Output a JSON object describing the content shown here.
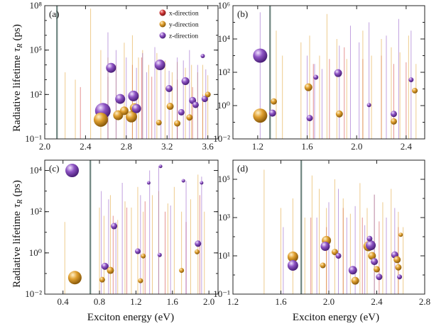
{
  "figure": {
    "ylabel": "Radiative lifetime",
    "ylabel_symbol": "τ",
    "ylabel_sub": "R",
    "ylabel_unit": "(ps)",
    "xlabel": "Exciton energy (eV)",
    "legend": [
      "x-direction",
      "y-direction",
      "z-direction"
    ]
  },
  "colors": {
    "x": "#d23a3a",
    "y": "#e0a030",
    "z": "#8e54c4",
    "vline": "#6f8580"
  },
  "chart_data": [
    {
      "panel": "(a)",
      "type": "scatter",
      "xlim": [
        2.0,
        3.7
      ],
      "ylog": true,
      "ylim_exp": [
        -1,
        8
      ],
      "xticks": [
        "2.0",
        "2.4",
        "2.8",
        "3.2",
        "3.6"
      ],
      "xtick_values": [
        2.0,
        2.4,
        2.8,
        3.2,
        3.6
      ],
      "yticks": [
        "10⁻¹",
        "10²",
        "10⁵",
        "10⁸"
      ],
      "ytick_exp": [
        -1,
        2,
        5,
        8
      ],
      "vline": 2.12,
      "legend_position": "top-right",
      "sticks": {
        "x": [
          [
            2.35,
            2.5
          ],
          [
            2.62,
            3.2
          ],
          [
            2.86,
            4.0
          ],
          [
            2.95,
            4.5
          ],
          [
            3.05,
            3.2
          ],
          [
            3.3,
            3.0
          ],
          [
            3.45,
            2.5
          ],
          [
            3.55,
            2.0
          ]
        ],
        "y": [
          [
            2.2,
            3.5
          ],
          [
            2.3,
            3.0
          ],
          [
            2.45,
            7.8
          ],
          [
            2.55,
            5.0
          ],
          [
            2.62,
            4.5
          ],
          [
            2.7,
            4.0
          ],
          [
            2.78,
            5.5
          ],
          [
            2.86,
            6.0
          ],
          [
            2.92,
            4.5
          ],
          [
            2.96,
            5.0
          ],
          [
            3.02,
            4.0
          ],
          [
            3.1,
            4.8
          ],
          [
            3.18,
            4.3
          ],
          [
            3.25,
            3.5
          ],
          [
            3.3,
            4.2
          ],
          [
            3.38,
            3.8
          ],
          [
            3.44,
            4.0
          ],
          [
            3.5,
            3.5
          ],
          [
            3.55,
            4.0
          ],
          [
            3.6,
            3.3
          ]
        ],
        "z": [
          [
            2.62,
            6.2
          ],
          [
            2.7,
            5.0
          ],
          [
            2.8,
            4.5
          ],
          [
            2.9,
            3.8
          ],
          [
            2.96,
            4.8
          ],
          [
            3.0,
            3.5
          ],
          [
            3.08,
            5.2
          ],
          [
            3.14,
            4.0
          ],
          [
            3.22,
            3.6
          ],
          [
            3.3,
            4.5
          ],
          [
            3.36,
            4.3
          ],
          [
            3.42,
            5.0
          ],
          [
            3.5,
            4.0
          ],
          [
            3.58,
            3.7
          ]
        ]
      },
      "bubbles": [
        {
          "pol": "y",
          "x": 2.55,
          "y": 0.3,
          "s": 20
        },
        {
          "pol": "z",
          "x": 2.57,
          "y": 0.9,
          "s": 22
        },
        {
          "pol": "z",
          "x": 2.65,
          "y": 3.8,
          "s": 14
        },
        {
          "pol": "y",
          "x": 2.72,
          "y": 0.6,
          "s": 14
        },
        {
          "pol": "z",
          "x": 2.74,
          "y": 1.7,
          "s": 14
        },
        {
          "pol": "y",
          "x": 2.78,
          "y": 0.9,
          "s": 12
        },
        {
          "pol": "y",
          "x": 2.85,
          "y": 0.5,
          "s": 16
        },
        {
          "pol": "y",
          "x": 2.88,
          "y": 1.1,
          "s": 13
        },
        {
          "pol": "z",
          "x": 2.87,
          "y": 1.9,
          "s": 15
        },
        {
          "pol": "z",
          "x": 2.9,
          "y": 1.05,
          "s": 13
        },
        {
          "pol": "y",
          "x": 3.12,
          "y": 0.1,
          "s": 8
        },
        {
          "pol": "z",
          "x": 3.13,
          "y": 4.0,
          "s": 15
        },
        {
          "pol": "z",
          "x": 3.22,
          "y": 2.4,
          "s": 10
        },
        {
          "pol": "y",
          "x": 3.23,
          "y": 1.2,
          "s": 10
        },
        {
          "pol": "y",
          "x": 3.3,
          "y": 0.05,
          "s": 9
        },
        {
          "pol": "z",
          "x": 3.34,
          "y": 0.8,
          "s": 9
        },
        {
          "pol": "z",
          "x": 3.38,
          "y": 2.9,
          "s": 11
        },
        {
          "pol": "y",
          "x": 3.42,
          "y": 0.45,
          "s": 9
        },
        {
          "pol": "z",
          "x": 3.45,
          "y": 1.6,
          "s": 10
        },
        {
          "pol": "z",
          "x": 3.48,
          "y": 1.3,
          "s": 9
        },
        {
          "pol": "z",
          "x": 3.55,
          "y": 4.6,
          "s": 6
        },
        {
          "pol": "z",
          "x": 3.57,
          "y": 1.7,
          "s": 9
        },
        {
          "pol": "y",
          "x": 3.6,
          "y": 2.0,
          "s": 8
        }
      ]
    },
    {
      "panel": "(b)",
      "type": "scatter",
      "xlim": [
        1.0,
        2.55
      ],
      "ylog": true,
      "ylim_exp": [
        -2,
        6
      ],
      "xticks": [
        "1.2",
        "1.6",
        "2.0",
        "2.4"
      ],
      "xtick_values": [
        1.2,
        1.6,
        2.0,
        2.4
      ],
      "yticks": [
        "10⁻²",
        "10⁰",
        "10²",
        "10⁴",
        "10⁶"
      ],
      "ytick_exp": [
        -2,
        0,
        2,
        4,
        6
      ],
      "vline": 1.3,
      "legend_position": "none",
      "sticks": {
        "x": [
          [
            1.65,
            2.5
          ],
          [
            1.78,
            2.8
          ],
          [
            1.9,
            3.5
          ],
          [
            2.05,
            2.8
          ],
          [
            2.2,
            3.0
          ],
          [
            2.3,
            2.5
          ],
          [
            2.4,
            2.6
          ]
        ],
        "y": [
          [
            1.35,
            4.5
          ],
          [
            1.4,
            3.0
          ],
          [
            1.55,
            3.8
          ],
          [
            1.62,
            4.2
          ],
          [
            1.7,
            3.0
          ],
          [
            1.76,
            5.5
          ],
          [
            1.84,
            4.0
          ],
          [
            1.92,
            2.8
          ],
          [
            2.05,
            4.5
          ],
          [
            2.12,
            3.0
          ],
          [
            2.2,
            4.0
          ],
          [
            2.28,
            3.5
          ],
          [
            2.35,
            3.2
          ],
          [
            2.42,
            4.2
          ],
          [
            2.48,
            2.5
          ]
        ],
        "z": [
          [
            1.22,
            5.6
          ],
          [
            1.6,
            3.0
          ],
          [
            1.66,
            2.5
          ],
          [
            1.72,
            2.2
          ],
          [
            1.86,
            3.6
          ],
          [
            1.95,
            4.8
          ],
          [
            2.02,
            3.8
          ],
          [
            2.1,
            5.0
          ],
          [
            2.24,
            4.2
          ],
          [
            2.34,
            5.2
          ],
          [
            2.44,
            4.5
          ]
        ]
      },
      "bubbles": [
        {
          "pol": "z",
          "x": 1.22,
          "y": 3.0,
          "s": 20
        },
        {
          "pol": "y",
          "x": 1.22,
          "y": -0.6,
          "s": 20
        },
        {
          "pol": "y",
          "x": 1.33,
          "y": 0.25,
          "s": 9
        },
        {
          "pol": "z",
          "x": 1.32,
          "y": -0.45,
          "s": 10
        },
        {
          "pol": "y",
          "x": 1.61,
          "y": 1.1,
          "s": 11
        },
        {
          "pol": "z",
          "x": 1.62,
          "y": -0.75,
          "s": 9
        },
        {
          "pol": "z",
          "x": 1.67,
          "y": 1.7,
          "s": 7
        },
        {
          "pol": "z",
          "x": 1.85,
          "y": 1.95,
          "s": 11
        },
        {
          "pol": "y",
          "x": 1.86,
          "y": -0.5,
          "s": 10
        },
        {
          "pol": "z",
          "x": 2.1,
          "y": 0.03,
          "s": 6
        },
        {
          "pol": "z",
          "x": 2.3,
          "y": -0.5,
          "s": 9
        },
        {
          "pol": "y",
          "x": 2.3,
          "y": -0.95,
          "s": 9
        },
        {
          "pol": "z",
          "x": 2.44,
          "y": 1.55,
          "s": 7
        },
        {
          "pol": "y",
          "x": 2.47,
          "y": 0.9,
          "s": 8
        }
      ]
    },
    {
      "panel": "(c)",
      "type": "scatter",
      "xlim": [
        0.2,
        2.1
      ],
      "ylog": true,
      "ylim_exp": [
        -2,
        4.5
      ],
      "xticks": [
        "0.4",
        "0.8",
        "1.2",
        "1.6",
        "2.0"
      ],
      "xtick_values": [
        0.4,
        0.8,
        1.2,
        1.6,
        2.0
      ],
      "yticks": [
        "10⁻²",
        "10⁰",
        "10²",
        "10⁴"
      ],
      "ytick_exp": [
        -2,
        0,
        2,
        4
      ],
      "vline": 0.7,
      "legend_position": "none",
      "sticks": {
        "x": [
          [
            0.95,
            1.8
          ],
          [
            1.1,
            2.2
          ],
          [
            1.3,
            2.5
          ],
          [
            1.52,
            2.0
          ],
          [
            1.75,
            1.5
          ],
          [
            1.9,
            2.8
          ]
        ],
        "y": [
          [
            0.42,
            1.5
          ],
          [
            0.8,
            2.2
          ],
          [
            0.85,
            1.8
          ],
          [
            0.92,
            2.8
          ],
          [
            1.0,
            1.6
          ],
          [
            1.08,
            2.5
          ],
          [
            1.15,
            2.2
          ],
          [
            1.22,
            3.2
          ],
          [
            1.28,
            2.0
          ],
          [
            1.38,
            2.8
          ],
          [
            1.45,
            3.0
          ],
          [
            1.55,
            2.4
          ],
          [
            1.62,
            3.2
          ],
          [
            1.7,
            2.0
          ],
          [
            1.8,
            2.6
          ],
          [
            1.88,
            3.8
          ],
          [
            1.95,
            2.0
          ]
        ],
        "z": [
          [
            0.82,
            3.0
          ],
          [
            0.9,
            2.6
          ],
          [
            0.98,
            1.5
          ],
          [
            1.05,
            3.4
          ],
          [
            1.25,
            2.8
          ],
          [
            1.35,
            4.0
          ],
          [
            1.45,
            4.2
          ],
          [
            1.58,
            2.3
          ],
          [
            1.75,
            3.5
          ],
          [
            1.92,
            3.7
          ]
        ]
      },
      "bubbles": [
        {
          "pol": "z",
          "x": 0.5,
          "y": 4.0,
          "s": 19
        },
        {
          "pol": "y",
          "x": 0.53,
          "y": -1.2,
          "s": 19
        },
        {
          "pol": "y",
          "x": 0.83,
          "y": -1.3,
          "s": 8
        },
        {
          "pol": "z",
          "x": 0.86,
          "y": -0.65,
          "s": 10
        },
        {
          "pol": "y",
          "x": 0.92,
          "y": -0.85,
          "s": 10
        },
        {
          "pol": "z",
          "x": 0.96,
          "y": 1.3,
          "s": 9
        },
        {
          "pol": "z",
          "x": 1.22,
          "y": 0.08,
          "s": 8
        },
        {
          "pol": "y",
          "x": 1.25,
          "y": -1.35,
          "s": 7
        },
        {
          "pol": "y",
          "x": 1.28,
          "y": -0.15,
          "s": 7
        },
        {
          "pol": "z",
          "x": 1.34,
          "y": 3.4,
          "s": 5
        },
        {
          "pol": "z",
          "x": 1.46,
          "y": -0.1,
          "s": 6
        },
        {
          "pol": "z",
          "x": 1.47,
          "y": 4.2,
          "s": 5
        },
        {
          "pol": "y",
          "x": 1.7,
          "y": -0.85,
          "s": 7
        },
        {
          "pol": "z",
          "x": 1.72,
          "y": 3.5,
          "s": 5
        },
        {
          "pol": "y",
          "x": 1.87,
          "y": 0.05,
          "s": 7
        },
        {
          "pol": "z",
          "x": 1.88,
          "y": 0.45,
          "s": 9
        },
        {
          "pol": "z",
          "x": 1.92,
          "y": 3.4,
          "s": 5
        }
      ]
    },
    {
      "panel": "(d)",
      "type": "scatter",
      "xlim": [
        1.2,
        2.8
      ],
      "ylog": true,
      "ylim_exp": [
        -1,
        6
      ],
      "xticks": [
        "1.2",
        "1.6",
        "2.0",
        "2.4",
        "2.8"
      ],
      "xtick_values": [
        1.2,
        1.6,
        2.0,
        2.4,
        2.8
      ],
      "yticks": [
        "10⁻¹",
        "10¹",
        "10³",
        "10⁵"
      ],
      "ytick_exp": [
        -1,
        1,
        3,
        5
      ],
      "vline": 1.77,
      "legend_position": "none",
      "sticks": {
        "x": [
          [
            1.85,
            3.0
          ],
          [
            1.98,
            2.5
          ],
          [
            2.12,
            3.5
          ],
          [
            2.28,
            3.0
          ],
          [
            2.42,
            2.8
          ],
          [
            2.58,
            2.5
          ]
        ],
        "y": [
          [
            1.46,
            5.5
          ],
          [
            1.6,
            3.5
          ],
          [
            1.7,
            4.0
          ],
          [
            1.8,
            3.0
          ],
          [
            1.86,
            5.2
          ],
          [
            1.92,
            4.5
          ],
          [
            1.98,
            3.5
          ],
          [
            2.05,
            5.0
          ],
          [
            2.12,
            4.0
          ],
          [
            2.18,
            3.2
          ],
          [
            2.26,
            4.8
          ],
          [
            2.32,
            3.5
          ],
          [
            2.38,
            4.2
          ],
          [
            2.45,
            3.8
          ],
          [
            2.52,
            4.5
          ],
          [
            2.58,
            3.3
          ],
          [
            2.62,
            2.5
          ]
        ],
        "z": [
          [
            1.62,
            2.5
          ],
          [
            1.9,
            3.0
          ],
          [
            2.0,
            3.8
          ],
          [
            2.08,
            4.5
          ],
          [
            2.15,
            3.0
          ],
          [
            2.22,
            3.6
          ],
          [
            2.3,
            2.6
          ],
          [
            2.38,
            4.2
          ],
          [
            2.48,
            3.0
          ],
          [
            2.55,
            3.5
          ]
        ]
      },
      "bubbles": [
        {
          "pol": "y",
          "x": 1.7,
          "y": 0.95,
          "s": 15
        },
        {
          "pol": "z",
          "x": 1.7,
          "y": 0.5,
          "s": 15
        },
        {
          "pol": "y",
          "x": 1.98,
          "y": 1.8,
          "s": 13
        },
        {
          "pol": "z",
          "x": 1.97,
          "y": 1.5,
          "s": 13
        },
        {
          "pol": "y",
          "x": 1.95,
          "y": 0.5,
          "s": 8
        },
        {
          "pol": "y",
          "x": 2.05,
          "y": 1.2,
          "s": 9
        },
        {
          "pol": "z",
          "x": 2.08,
          "y": 1.0,
          "s": 8
        },
        {
          "pol": "z",
          "x": 2.2,
          "y": 0.25,
          "s": 12
        },
        {
          "pol": "y",
          "x": 2.22,
          "y": -0.3,
          "s": 11
        },
        {
          "pol": "y",
          "x": 2.33,
          "y": 1.5,
          "s": 14
        },
        {
          "pol": "z",
          "x": 2.35,
          "y": 1.55,
          "s": 14
        },
        {
          "pol": "y",
          "x": 2.36,
          "y": 1.0,
          "s": 11
        },
        {
          "pol": "z",
          "x": 2.38,
          "y": 0.7,
          "s": 10
        },
        {
          "pol": "z",
          "x": 2.34,
          "y": 1.9,
          "s": 8
        },
        {
          "pol": "y",
          "x": 2.4,
          "y": 0.3,
          "s": 9
        },
        {
          "pol": "z",
          "x": 2.42,
          "y": -0.1,
          "s": 9
        },
        {
          "pol": "z",
          "x": 2.55,
          "y": 1.05,
          "s": 10
        },
        {
          "pol": "y",
          "x": 2.57,
          "y": 0.8,
          "s": 10
        },
        {
          "pol": "y",
          "x": 2.58,
          "y": 0.4,
          "s": 9
        },
        {
          "pol": "z",
          "x": 2.59,
          "y": -0.1,
          "s": 7
        },
        {
          "pol": "y",
          "x": 2.6,
          "y": 2.1,
          "s": 6
        }
      ]
    }
  ]
}
